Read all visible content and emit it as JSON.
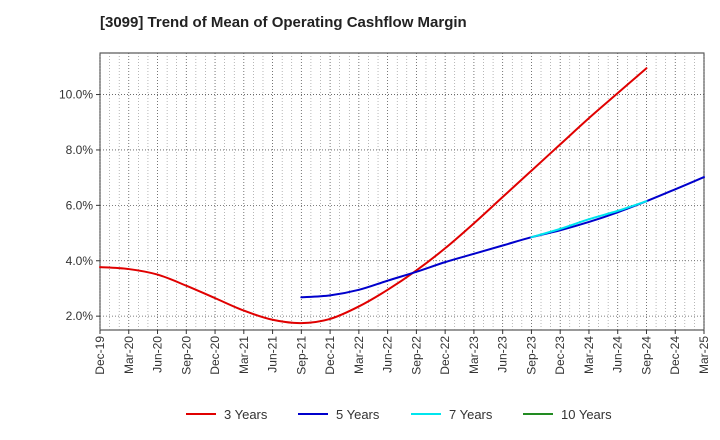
{
  "chart_data": {
    "type": "line",
    "title": "[3099]  Trend of Mean of Operating Cashflow Margin",
    "xlabel": "",
    "ylabel": "",
    "x_tick_labels": [
      "Dec-19",
      "Mar-20",
      "Jun-20",
      "Sep-20",
      "Dec-20",
      "Mar-21",
      "Jun-21",
      "Sep-21",
      "Dec-21",
      "Mar-22",
      "Jun-22",
      "Sep-22",
      "Dec-22",
      "Mar-23",
      "Jun-23",
      "Sep-23",
      "Dec-23",
      "Mar-24",
      "Jun-24",
      "Sep-24",
      "Dec-24",
      "Mar-25"
    ],
    "y_ticks": [
      2.0,
      4.0,
      6.0,
      8.0,
      10.0
    ],
    "y_tick_labels": [
      "2.0%",
      "4.0%",
      "6.0%",
      "8.0%",
      "10.0%"
    ],
    "ylim": [
      1.5,
      11.5
    ],
    "grid": true,
    "legend_position": "bottom",
    "series": [
      {
        "name": "3 Years",
        "color": "#e00000",
        "start_index": 0,
        "values": [
          3.77,
          3.7,
          3.5,
          3.1,
          2.65,
          2.2,
          1.87,
          1.75,
          1.9,
          2.35,
          2.95,
          3.65,
          4.45,
          5.35,
          6.3,
          7.25,
          8.2,
          9.15,
          10.05,
          10.95
        ]
      },
      {
        "name": "5 Years",
        "color": "#0000cc",
        "start_index": 7,
        "values": [
          2.68,
          2.75,
          2.95,
          3.28,
          3.6,
          3.95,
          4.25,
          4.55,
          4.85,
          5.1,
          5.4,
          5.75,
          6.15,
          6.58,
          7.02
        ]
      },
      {
        "name": "7 Years",
        "color": "#00e5ee",
        "start_index": 15,
        "values": [
          4.85,
          5.15,
          5.5,
          5.8,
          6.15
        ]
      },
      {
        "name": "10 Years",
        "color": "#228b22",
        "start_index": 0,
        "values": []
      }
    ]
  }
}
